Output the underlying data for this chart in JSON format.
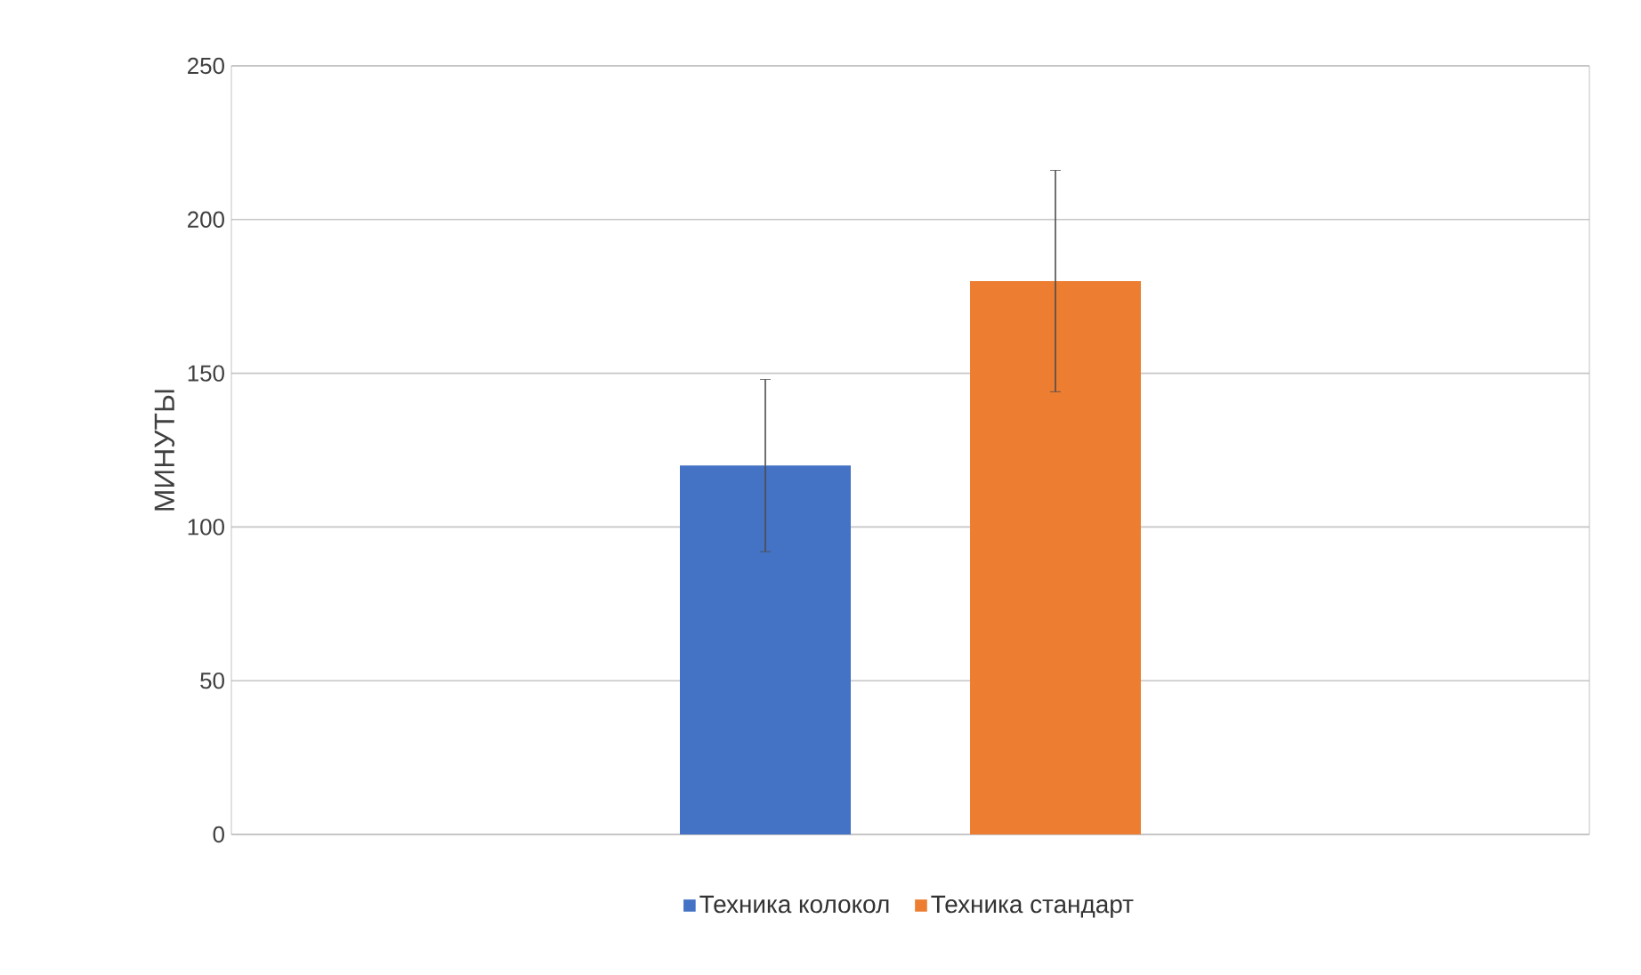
{
  "chart_data": {
    "type": "bar",
    "ylabel": "МИНУТЫ",
    "categories": [
      null
    ],
    "series": [
      {
        "name": "Техника колокол",
        "color": "#4472c4",
        "values": [
          120
        ],
        "errors": [
          28
        ]
      },
      {
        "name": "Техника стандарт",
        "color": "#ed7d31",
        "values": [
          180
        ],
        "errors": [
          36
        ]
      }
    ],
    "ylim": [
      0,
      250
    ],
    "yticks": [
      0,
      50,
      100,
      150,
      200,
      250
    ],
    "grid": "y",
    "legend": "bottom"
  }
}
